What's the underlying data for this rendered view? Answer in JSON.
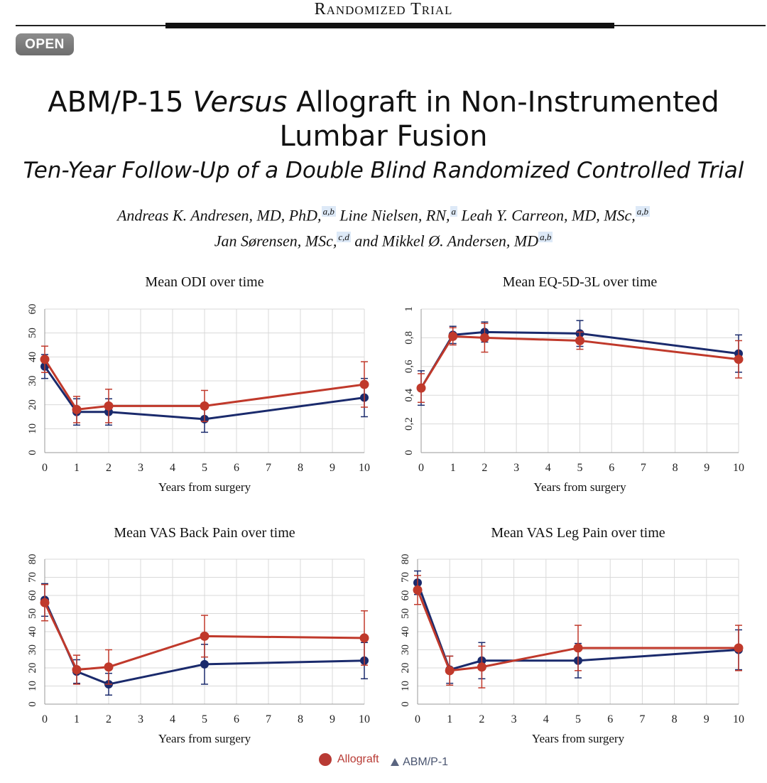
{
  "header": {
    "section": "Randomized Trial"
  },
  "badge": {
    "label": "OPEN"
  },
  "article": {
    "title_part1": "ABM/P-15 ",
    "title_italic": "Versus",
    "title_part2": " Allograft in Non-Instrumented Lumbar Fusion",
    "subtitle": "Ten-Year Follow-Up of a Double Blind Randomized Controlled Trial",
    "authors": [
      {
        "name": "Andreas K. Andresen, MD, PhD,",
        "aff": "a,b"
      },
      {
        "name": " Line Nielsen, RN,",
        "aff": "a"
      },
      {
        "name": " Leah Y. Carreon, MD, MSc,",
        "aff": "a,b"
      },
      {
        "name": "Jan Sørensen, MSc,",
        "aff": "c,d"
      },
      {
        "name": " and Mikkel Ø. Andersen, MD",
        "aff": "a,b"
      }
    ]
  },
  "colors": {
    "allograft": "#c0392b",
    "abm": "#1a2a6c",
    "grid": "#d9d9d9"
  },
  "legend": {
    "allograft_label": "Allograft",
    "abm_label": "ABM/P-1"
  },
  "chart_data": [
    {
      "type": "line",
      "title": "Mean ODI over time",
      "xlabel": "Years from surgery",
      "ylabel": "",
      "xlim": [
        0,
        10
      ],
      "ylim": [
        0,
        60
      ],
      "xticks": [
        "0",
        "1",
        "2",
        "3",
        "4",
        "5",
        "6",
        "7",
        "8",
        "9",
        "10"
      ],
      "yticks": [
        "0",
        "10",
        "20",
        "30",
        "40",
        "50",
        "60"
      ],
      "x": [
        0,
        1,
        2,
        5,
        10
      ],
      "series": [
        {
          "name": "Allograft",
          "values": [
            39,
            18,
            19.5,
            19.5,
            28.5
          ],
          "err": [
            5.5,
            5.5,
            7,
            6.5,
            9.5
          ]
        },
        {
          "name": "ABM/P-1",
          "values": [
            36,
            17,
            17,
            14,
            23
          ],
          "err": [
            5,
            5.5,
            5.5,
            5.5,
            8
          ]
        }
      ]
    },
    {
      "type": "line",
      "title": "Mean EQ-5D-3L over time",
      "xlabel": "Years from surgery",
      "ylabel": "",
      "xlim": [
        0,
        10
      ],
      "ylim": [
        0,
        1
      ],
      "xticks": [
        "0",
        "1",
        "2",
        "3",
        "4",
        "5",
        "6",
        "7",
        "8",
        "9",
        "10"
      ],
      "yticks": [
        "0",
        "0,2",
        "0,4",
        "0,6",
        "0,8",
        "1"
      ],
      "x": [
        0,
        1,
        2,
        5,
        10
      ],
      "series": [
        {
          "name": "Allograft",
          "values": [
            0.45,
            0.81,
            0.8,
            0.78,
            0.65
          ],
          "err": [
            0.1,
            0.06,
            0.1,
            0.06,
            0.13
          ]
        },
        {
          "name": "ABM/P-1",
          "values": [
            0.45,
            0.82,
            0.84,
            0.83,
            0.69
          ],
          "err": [
            0.12,
            0.06,
            0.07,
            0.09,
            0.13
          ]
        }
      ]
    },
    {
      "type": "line",
      "title": "Mean VAS Back Pain over time",
      "xlabel": "Years from surgery",
      "ylabel": "",
      "xlim": [
        0,
        10
      ],
      "ylim": [
        0,
        80
      ],
      "xticks": [
        "0",
        "1",
        "2",
        "3",
        "4",
        "5",
        "6",
        "7",
        "8",
        "9",
        "10"
      ],
      "yticks": [
        "0",
        "10",
        "20",
        "30",
        "40",
        "50",
        "60",
        "70",
        "80"
      ],
      "x": [
        0,
        1,
        2,
        5,
        10
      ],
      "series": [
        {
          "name": "Allograft",
          "values": [
            56,
            19,
            20.5,
            37.5,
            36.5
          ],
          "err": [
            10,
            8,
            9.5,
            11.5,
            15
          ]
        },
        {
          "name": "ABM/P-1",
          "values": [
            57.5,
            18,
            11,
            22,
            24
          ],
          "err": [
            9,
            6.5,
            6,
            11,
            10
          ]
        }
      ]
    },
    {
      "type": "line",
      "title": "Mean VAS Leg Pain over time",
      "xlabel": "Years from surgery",
      "ylabel": "",
      "xlim": [
        0,
        10
      ],
      "ylim": [
        0,
        80
      ],
      "xticks": [
        "0",
        "1",
        "2",
        "3",
        "4",
        "5",
        "6",
        "7",
        "8",
        "9",
        "10"
      ],
      "yticks": [
        "0",
        "10",
        "20",
        "30",
        "40",
        "50",
        "60",
        "70",
        "80"
      ],
      "x": [
        0,
        1,
        2,
        5,
        10
      ],
      "series": [
        {
          "name": "Allograft",
          "values": [
            63,
            18.5,
            20.5,
            31,
            31
          ],
          "err": [
            8,
            8,
            11.5,
            12.5,
            12.5
          ]
        },
        {
          "name": "ABM/P-1",
          "values": [
            67,
            19,
            24,
            24,
            30
          ],
          "err": [
            6.5,
            7.5,
            10,
            9.5,
            11
          ]
        }
      ]
    }
  ]
}
